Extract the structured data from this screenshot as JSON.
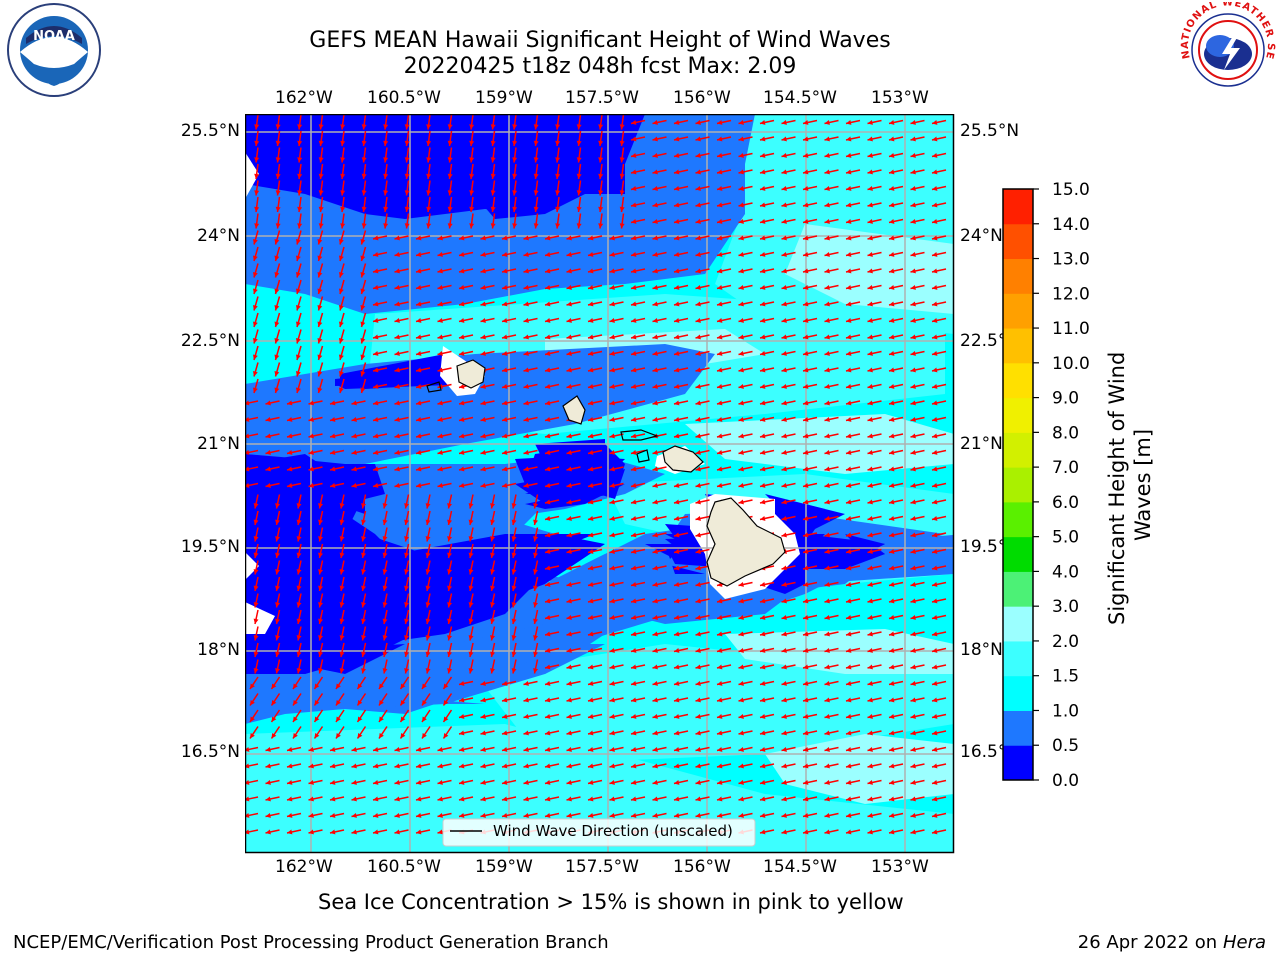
{
  "title": {
    "line1": "GEFS MEAN Hawaii Significant Height of Wind Waves",
    "line2": "20220425 t18z 048h fcst   Max: 2.09"
  },
  "logos": {
    "noaa_text": "NOAA",
    "noaa_ring": "NATIONAL OCEANIC AND ATMOSPHERIC ADMINISTRATION · U.S. DEPARTMENT OF COMMERCE",
    "nws_ring": "NATIONAL WEATHER SERVICE"
  },
  "map": {
    "lon_labels": [
      "162°W",
      "160.5°W",
      "159°W",
      "157.5°W",
      "156°W",
      "154.5°W",
      "153°W"
    ],
    "lat_labels": [
      "25.5°N",
      "24°N",
      "22.5°N",
      "21°N",
      "19.5°N",
      "18°N",
      "16.5°N"
    ],
    "legend_label": "Wind Wave Direction (unscaled)",
    "arrow_color": "#ff0000",
    "land_color": "#efebd8"
  },
  "colorbar": {
    "label": "Significant Height of Wind Waves [m]",
    "ticks": [
      "0.0",
      "0.5",
      "1.0",
      "1.5",
      "2.0",
      "3.0",
      "4.0",
      "5.0",
      "6.0",
      "7.0",
      "8.0",
      "9.0",
      "10.0",
      "11.0",
      "12.0",
      "13.0",
      "14.0",
      "15.0"
    ],
    "colors": [
      "#0000ff",
      "#1e78ff",
      "#00ffff",
      "#3cffff",
      "#9bffff",
      "#4cf176",
      "#00dc00",
      "#5af000",
      "#aaf000",
      "#d2f000",
      "#f0f000",
      "#ffe000",
      "#ffc000",
      "#ffa000",
      "#ff8000",
      "#ff5000",
      "#ff2000"
    ]
  },
  "note": "Sea Ice Concentration > 15% is shown in pink to yellow",
  "footer": {
    "left": "NCEP/EMC/Verification Post Processing Product Generation Branch",
    "date": "26 Apr 2022 on ",
    "machine": "Hera"
  }
}
